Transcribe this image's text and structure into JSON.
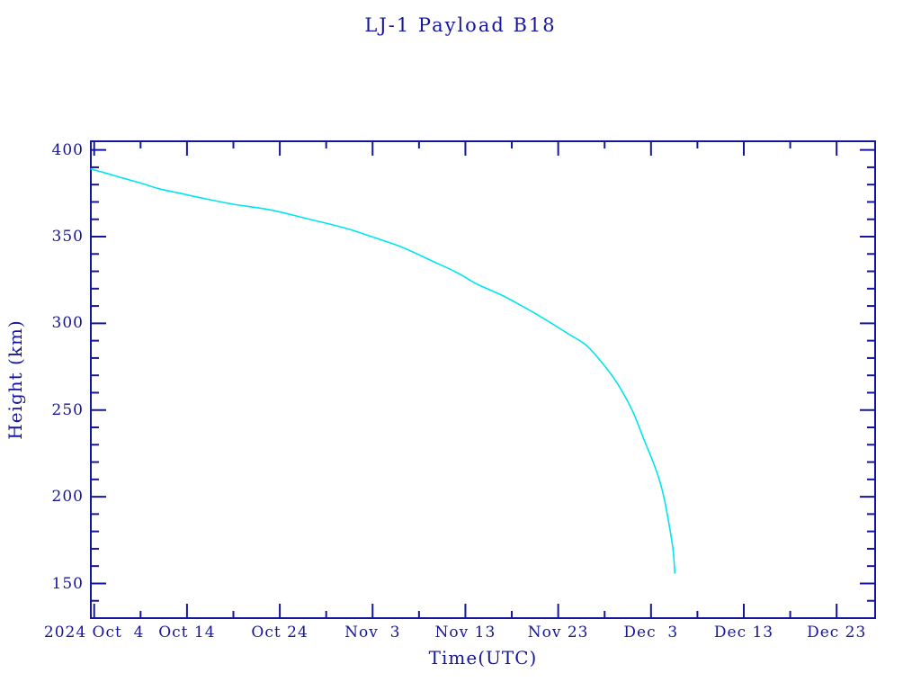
{
  "page": {
    "background": "#ffffff"
  },
  "chart_data": {
    "type": "line",
    "title": "LJ-1 Payload B18",
    "xlabel": "Time(UTC)",
    "ylabel": "Height (km)",
    "grid": false,
    "legend": "none",
    "colors": {
      "axis": "#16169b",
      "text": "#16169b",
      "curve": "#00e5ee",
      "background": "#ffffff"
    },
    "x_axis": {
      "unit": "days since 2024 Oct 4 00:00 UTC",
      "range_days": [
        -0.36,
        84.15
      ],
      "major_ticks_days": [
        0,
        10,
        20,
        30,
        40,
        50,
        60,
        70,
        80
      ],
      "major_tick_labels": [
        "2024 Oct  4",
        "Oct 14",
        "Oct 24",
        "Nov  3",
        "Nov 13",
        "Nov 23",
        "Dec  3",
        "Dec 13",
        "Dec 23"
      ],
      "minor_ticks_days": [
        5,
        15,
        25,
        35,
        45,
        55,
        65,
        75
      ]
    },
    "y_axis": {
      "range_km": [
        130,
        405
      ],
      "major_ticks_km": [
        150,
        200,
        250,
        300,
        350,
        400
      ],
      "major_tick_labels": [
        "150",
        "200",
        "250",
        "300",
        "350",
        "400"
      ],
      "minor_step_km": 10,
      "minor_from_km": 140,
      "minor_to_km": 400
    },
    "series": [
      {
        "points_day_km": [
          [
            -0.35,
            389.0
          ],
          [
            1,
            387.0
          ],
          [
            3,
            383.9
          ],
          [
            5,
            380.9
          ],
          [
            7,
            377.6
          ],
          [
            9,
            375.3
          ],
          [
            12,
            371.8
          ],
          [
            15,
            368.7
          ],
          [
            19,
            365.4
          ],
          [
            23,
            360.3
          ],
          [
            27,
            355.0
          ],
          [
            30,
            349.8
          ],
          [
            33,
            344.3
          ],
          [
            36.4,
            336.0
          ],
          [
            39,
            329.5
          ],
          [
            41.3,
            322.5
          ],
          [
            44,
            316.0
          ],
          [
            46.1,
            310.0
          ],
          [
            48.5,
            302.6
          ],
          [
            51,
            294.2
          ],
          [
            53,
            287.4
          ],
          [
            54.7,
            277.5
          ],
          [
            56.4,
            265.1
          ],
          [
            58,
            249.5
          ],
          [
            59.3,
            232.2
          ],
          [
            60.3,
            219.0
          ],
          [
            61,
            208.0
          ],
          [
            61.5,
            197.0
          ],
          [
            61.9,
            185.5
          ],
          [
            62.2,
            176.0
          ],
          [
            62.4,
            168.3
          ],
          [
            62.5,
            161.5
          ],
          [
            62.57,
            156.0
          ]
        ]
      }
    ]
  }
}
